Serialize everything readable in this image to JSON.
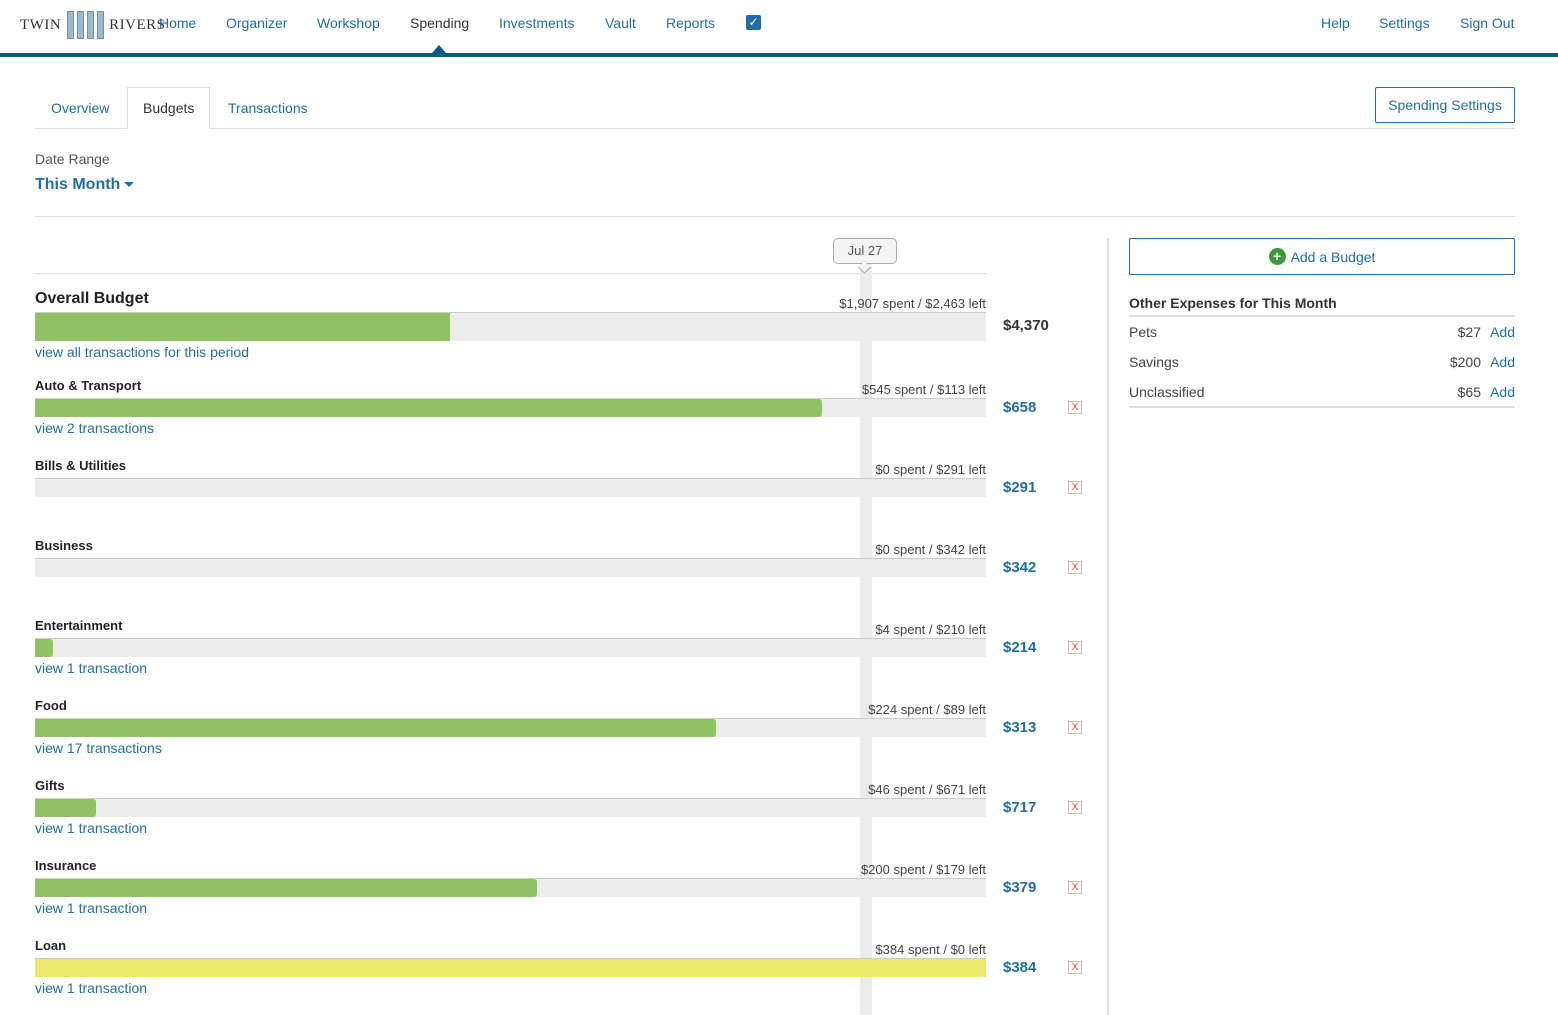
{
  "logo": {
    "left": "TWIN",
    "right": "RIVERS"
  },
  "nav": {
    "items": [
      "Home",
      "Organizer",
      "Workshop",
      "Spending",
      "Investments",
      "Vault",
      "Reports"
    ],
    "right": [
      "Help",
      "Settings",
      "Sign Out"
    ]
  },
  "tabs": [
    "Overview",
    "Budgets",
    "Transactions"
  ],
  "spending_settings": "Spending Settings",
  "date_range": {
    "label": "Date Range",
    "value": "This Month"
  },
  "today_marker": "Jul 27",
  "overall": {
    "name": "Overall Budget",
    "spent_text": "$1,907 spent / $2,463 left",
    "amount": "$4,370",
    "fill_fraction": 0.436,
    "link": "view all transactions for this period"
  },
  "budgets": [
    {
      "name": "Auto & Transport",
      "spent_text": "$545 spent / $113 left",
      "amount": "$658",
      "fill_fraction": 0.828,
      "link": "view 2 transactions",
      "over": false
    },
    {
      "name": "Bills & Utilities",
      "spent_text": "$0 spent / $291 left",
      "amount": "$291",
      "fill_fraction": 0,
      "link": "",
      "over": false
    },
    {
      "name": "Business",
      "spent_text": "$0 spent / $342 left",
      "amount": "$342",
      "fill_fraction": 0,
      "link": "",
      "over": false
    },
    {
      "name": "Entertainment",
      "spent_text": "$4 spent / $210 left",
      "amount": "$214",
      "fill_fraction": 0.019,
      "link": "view 1 transaction",
      "over": false
    },
    {
      "name": "Food",
      "spent_text": "$224 spent / $89 left",
      "amount": "$313",
      "fill_fraction": 0.716,
      "link": "view 17 transactions",
      "over": false
    },
    {
      "name": "Gifts",
      "spent_text": "$46 spent / $671 left",
      "amount": "$717",
      "fill_fraction": 0.064,
      "link": "view 1 transaction",
      "over": false
    },
    {
      "name": "Insurance",
      "spent_text": "$200 spent / $179 left",
      "amount": "$379",
      "fill_fraction": 0.528,
      "link": "view 1 transaction",
      "over": false
    },
    {
      "name": "Loan",
      "spent_text": "$384 spent / $0 left",
      "amount": "$384",
      "fill_fraction": 1.0,
      "link": "view 1 transaction",
      "over": true
    }
  ],
  "delete_label": "X",
  "add_budget": {
    "icon": "plus-circle-icon",
    "label": "Add a Budget"
  },
  "other_expenses": {
    "title": "Other Expenses for This Month",
    "add_label": "Add",
    "items": [
      {
        "name": "Pets",
        "amount": "$27"
      },
      {
        "name": "Savings",
        "amount": "$200"
      },
      {
        "name": "Unclassified",
        "amount": "$65"
      }
    ]
  },
  "colors": {
    "accent": "#1f6ea8",
    "nav_border": "#0d5a87",
    "fill": "#8ec263",
    "fill_over": "#ece86b"
  }
}
